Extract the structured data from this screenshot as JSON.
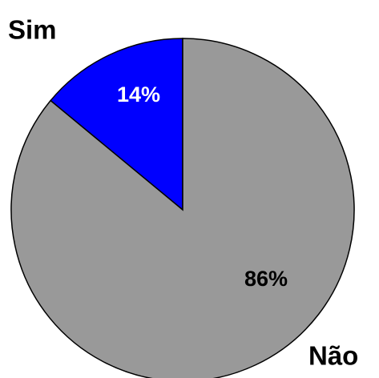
{
  "chart_data": {
    "type": "pie",
    "categories": [
      "Sim",
      "Não"
    ],
    "values": [
      14,
      86
    ],
    "value_labels": [
      "14%",
      "86%"
    ],
    "colors": [
      "#0000ff",
      "#999999"
    ]
  }
}
